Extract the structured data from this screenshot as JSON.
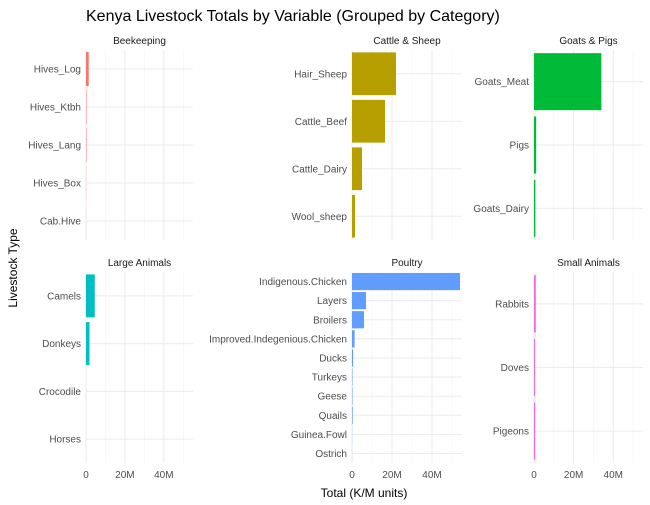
{
  "chart_data": {
    "type": "bar",
    "orientation": "horizontal",
    "faceted": true,
    "title": "Kenya Livestock Totals by Variable (Grouped by Category)",
    "xlabel": "Total (K/M units)",
    "ylabel": "Livestock Type",
    "xlim": [
      0,
      55000000
    ],
    "x_ticks": [
      {
        "value": 0,
        "label": "0"
      },
      {
        "value": 20000000,
        "label": "20M"
      },
      {
        "value": 40000000,
        "label": "40M"
      }
    ],
    "grid": true,
    "legend": "none",
    "facets": [
      {
        "name": "Beekeeping",
        "color": "#F8766D",
        "categories": [
          "Hives_Log",
          "Hives_Ktbh",
          "Hives_Lang",
          "Hives_Box",
          "Cab.Hive"
        ],
        "values": [
          1400000,
          250000,
          250000,
          60000,
          20000
        ]
      },
      {
        "name": "Cattle & Sheep",
        "color": "#B79F00",
        "categories": [
          "Hair_Sheep",
          "Cattle_Beef",
          "Cattle_Dairy",
          "Wool_sheep"
        ],
        "values": [
          22000000,
          16500000,
          5000000,
          1500000
        ]
      },
      {
        "name": "Goats & Pigs",
        "color": "#00BA38",
        "categories": [
          "Goats_Meat",
          "Pigs",
          "Goats_Dairy"
        ],
        "values": [
          34000000,
          1100000,
          700000
        ]
      },
      {
        "name": "Large Animals",
        "color": "#00BFC4",
        "categories": [
          "Camels",
          "Donkeys",
          "Crocodile",
          "Horses"
        ],
        "values": [
          4500000,
          1800000,
          10000,
          5000
        ]
      },
      {
        "name": "Poultry",
        "color": "#619CFF",
        "categories": [
          "Indigenous.Chicken",
          "Layers",
          "Broilers",
          "Improved.Indegenious.Chicken",
          "Ducks",
          "Turkeys",
          "Geese",
          "Quails",
          "Guinea.Fowl",
          "Ostrich"
        ],
        "values": [
          54000000,
          7000000,
          6000000,
          1300000,
          550000,
          250000,
          250000,
          350000,
          60000,
          20000
        ]
      },
      {
        "name": "Small Animals",
        "color": "#F564E3",
        "categories": [
          "Rabbits",
          "Doves",
          "Pigeons"
        ],
        "values": [
          900000,
          500000,
          600000
        ]
      }
    ]
  }
}
